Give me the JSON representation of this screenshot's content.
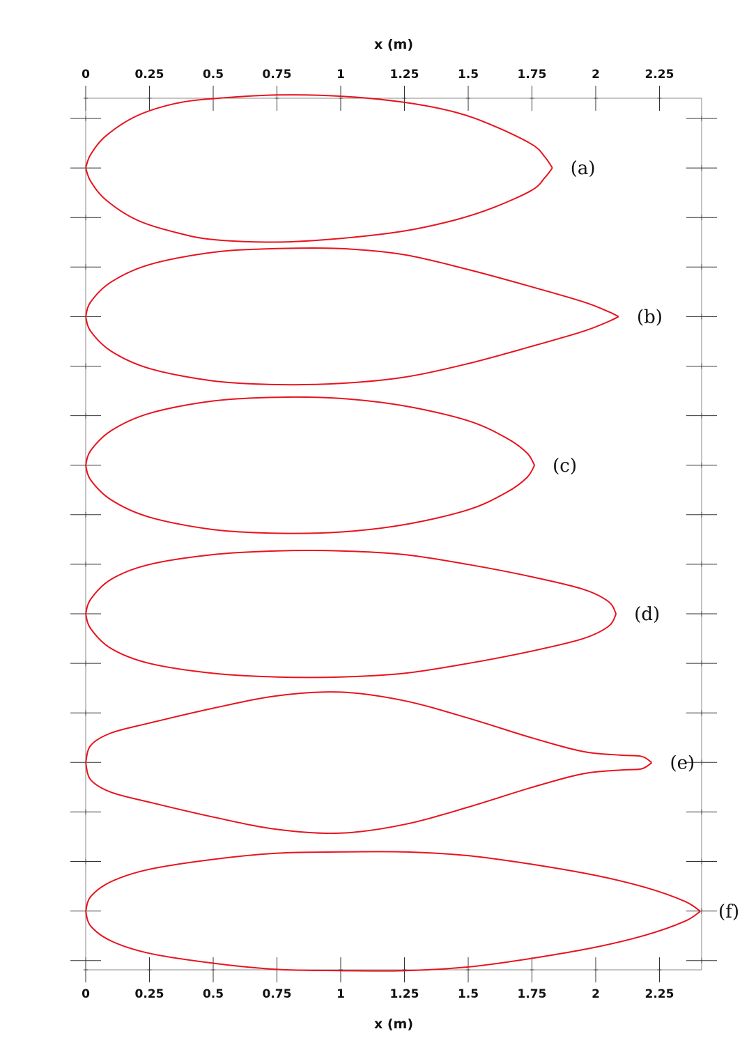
{
  "chart_data": {
    "type": "line",
    "title": "",
    "xlabel": "x (m)",
    "ylabel": "",
    "xlim": [
      0,
      2.41
    ],
    "xticks": [
      0,
      0.25,
      0.5,
      0.75,
      1,
      1.25,
      1.5,
      1.75,
      2,
      2.25
    ],
    "xtick_labels": [
      "0",
      "0.25",
      "0.5",
      "0.75",
      "1",
      "1.25",
      "1.5",
      "1.75",
      "2",
      "2.25"
    ],
    "grid": false,
    "legend": "none",
    "color": "#e8131e",
    "series": [
      {
        "label": "(a)",
        "centerline_y": 0,
        "upper": [
          [
            0,
            0
          ],
          [
            0.02,
            0.055
          ],
          [
            0.08,
            0.13
          ],
          [
            0.2,
            0.21
          ],
          [
            0.35,
            0.26
          ],
          [
            0.5,
            0.28
          ],
          [
            0.75,
            0.295
          ],
          [
            1.0,
            0.29
          ],
          [
            1.25,
            0.265
          ],
          [
            1.45,
            0.225
          ],
          [
            1.6,
            0.17
          ],
          [
            1.75,
            0.095
          ],
          [
            1.8,
            0.045
          ],
          [
            1.83,
            0
          ]
        ],
        "lower": [
          [
            0,
            0
          ],
          [
            0.02,
            -0.055
          ],
          [
            0.08,
            -0.13
          ],
          [
            0.2,
            -0.21
          ],
          [
            0.35,
            -0.26
          ],
          [
            0.5,
            -0.29
          ],
          [
            0.75,
            -0.3
          ],
          [
            1.0,
            -0.285
          ],
          [
            1.25,
            -0.255
          ],
          [
            1.45,
            -0.21
          ],
          [
            1.6,
            -0.16
          ],
          [
            1.75,
            -0.09
          ],
          [
            1.8,
            -0.04
          ],
          [
            1.83,
            0
          ]
        ]
      },
      {
        "label": "(b)",
        "centerline_y": -0.6,
        "upper": [
          [
            0,
            0
          ],
          [
            0.02,
            0.06
          ],
          [
            0.1,
            0.14
          ],
          [
            0.25,
            0.21
          ],
          [
            0.5,
            0.26
          ],
          [
            0.75,
            0.275
          ],
          [
            1.0,
            0.275
          ],
          [
            1.25,
            0.25
          ],
          [
            1.5,
            0.19
          ],
          [
            1.75,
            0.12
          ],
          [
            1.95,
            0.06
          ],
          [
            2.05,
            0.02
          ],
          [
            2.09,
            0
          ]
        ],
        "lower": [
          [
            0,
            0
          ],
          [
            0.02,
            -0.06
          ],
          [
            0.1,
            -0.14
          ],
          [
            0.25,
            -0.21
          ],
          [
            0.5,
            -0.26
          ],
          [
            0.75,
            -0.275
          ],
          [
            1.0,
            -0.27
          ],
          [
            1.25,
            -0.245
          ],
          [
            1.5,
            -0.19
          ],
          [
            1.75,
            -0.12
          ],
          [
            1.95,
            -0.06
          ],
          [
            2.05,
            -0.02
          ],
          [
            2.09,
            0
          ]
        ]
      },
      {
        "label": "(c)",
        "centerline_y": -1.2,
        "upper": [
          [
            0,
            0
          ],
          [
            0.02,
            0.06
          ],
          [
            0.1,
            0.14
          ],
          [
            0.25,
            0.21
          ],
          [
            0.5,
            0.26
          ],
          [
            0.75,
            0.275
          ],
          [
            1.0,
            0.27
          ],
          [
            1.25,
            0.24
          ],
          [
            1.5,
            0.18
          ],
          [
            1.65,
            0.11
          ],
          [
            1.73,
            0.05
          ],
          [
            1.76,
            0
          ]
        ],
        "lower": [
          [
            0,
            0
          ],
          [
            0.02,
            -0.06
          ],
          [
            0.1,
            -0.14
          ],
          [
            0.25,
            -0.21
          ],
          [
            0.5,
            -0.26
          ],
          [
            0.75,
            -0.275
          ],
          [
            1.0,
            -0.27
          ],
          [
            1.25,
            -0.24
          ],
          [
            1.5,
            -0.18
          ],
          [
            1.65,
            -0.11
          ],
          [
            1.73,
            -0.05
          ],
          [
            1.76,
            0
          ]
        ]
      },
      {
        "label": "(d)",
        "centerline_y": -1.8,
        "upper": [
          [
            0,
            0
          ],
          [
            0.02,
            0.06
          ],
          [
            0.1,
            0.14
          ],
          [
            0.25,
            0.2
          ],
          [
            0.5,
            0.24
          ],
          [
            0.75,
            0.255
          ],
          [
            1.0,
            0.255
          ],
          [
            1.25,
            0.24
          ],
          [
            1.5,
            0.2
          ],
          [
            1.75,
            0.15
          ],
          [
            1.95,
            0.1
          ],
          [
            2.05,
            0.05
          ],
          [
            2.08,
            0
          ]
        ],
        "lower": [
          [
            0,
            0
          ],
          [
            0.02,
            -0.06
          ],
          [
            0.1,
            -0.14
          ],
          [
            0.25,
            -0.2
          ],
          [
            0.5,
            -0.24
          ],
          [
            0.75,
            -0.255
          ],
          [
            1.0,
            -0.255
          ],
          [
            1.25,
            -0.24
          ],
          [
            1.5,
            -0.2
          ],
          [
            1.75,
            -0.15
          ],
          [
            1.95,
            -0.1
          ],
          [
            2.05,
            -0.05
          ],
          [
            2.08,
            0
          ]
        ]
      },
      {
        "label": "(e)",
        "centerline_y": -2.4,
        "upper": [
          [
            0,
            0
          ],
          [
            0.02,
            0.07
          ],
          [
            0.1,
            0.12
          ],
          [
            0.25,
            0.16
          ],
          [
            0.5,
            0.22
          ],
          [
            0.75,
            0.27
          ],
          [
            1.0,
            0.285
          ],
          [
            1.25,
            0.25
          ],
          [
            1.5,
            0.18
          ],
          [
            1.75,
            0.1
          ],
          [
            1.95,
            0.045
          ],
          [
            2.1,
            0.03
          ],
          [
            2.18,
            0.025
          ],
          [
            2.22,
            0
          ]
        ],
        "lower": [
          [
            0,
            0
          ],
          [
            0.02,
            -0.07
          ],
          [
            0.1,
            -0.12
          ],
          [
            0.25,
            -0.16
          ],
          [
            0.5,
            -0.22
          ],
          [
            0.75,
            -0.27
          ],
          [
            1.0,
            -0.285
          ],
          [
            1.25,
            -0.25
          ],
          [
            1.5,
            -0.18
          ],
          [
            1.75,
            -0.1
          ],
          [
            1.95,
            -0.045
          ],
          [
            2.1,
            -0.03
          ],
          [
            2.18,
            -0.025
          ],
          [
            2.22,
            0
          ]
        ]
      },
      {
        "label": "(f)",
        "centerline_y": -3.0,
        "upper": [
          [
            0,
            0
          ],
          [
            0.02,
            0.06
          ],
          [
            0.1,
            0.12
          ],
          [
            0.25,
            0.17
          ],
          [
            0.5,
            0.21
          ],
          [
            0.75,
            0.235
          ],
          [
            1.0,
            0.24
          ],
          [
            1.25,
            0.24
          ],
          [
            1.5,
            0.225
          ],
          [
            1.75,
            0.19
          ],
          [
            2.0,
            0.145
          ],
          [
            2.2,
            0.095
          ],
          [
            2.35,
            0.04
          ],
          [
            2.41,
            0
          ]
        ],
        "lower": [
          [
            0,
            0
          ],
          [
            0.02,
            -0.06
          ],
          [
            0.1,
            -0.12
          ],
          [
            0.25,
            -0.17
          ],
          [
            0.5,
            -0.21
          ],
          [
            0.75,
            -0.235
          ],
          [
            1.0,
            -0.24
          ],
          [
            1.25,
            -0.24
          ],
          [
            1.5,
            -0.225
          ],
          [
            1.75,
            -0.19
          ],
          [
            2.0,
            -0.145
          ],
          [
            2.2,
            -0.095
          ],
          [
            2.35,
            -0.04
          ],
          [
            2.41,
            0
          ]
        ]
      }
    ]
  }
}
